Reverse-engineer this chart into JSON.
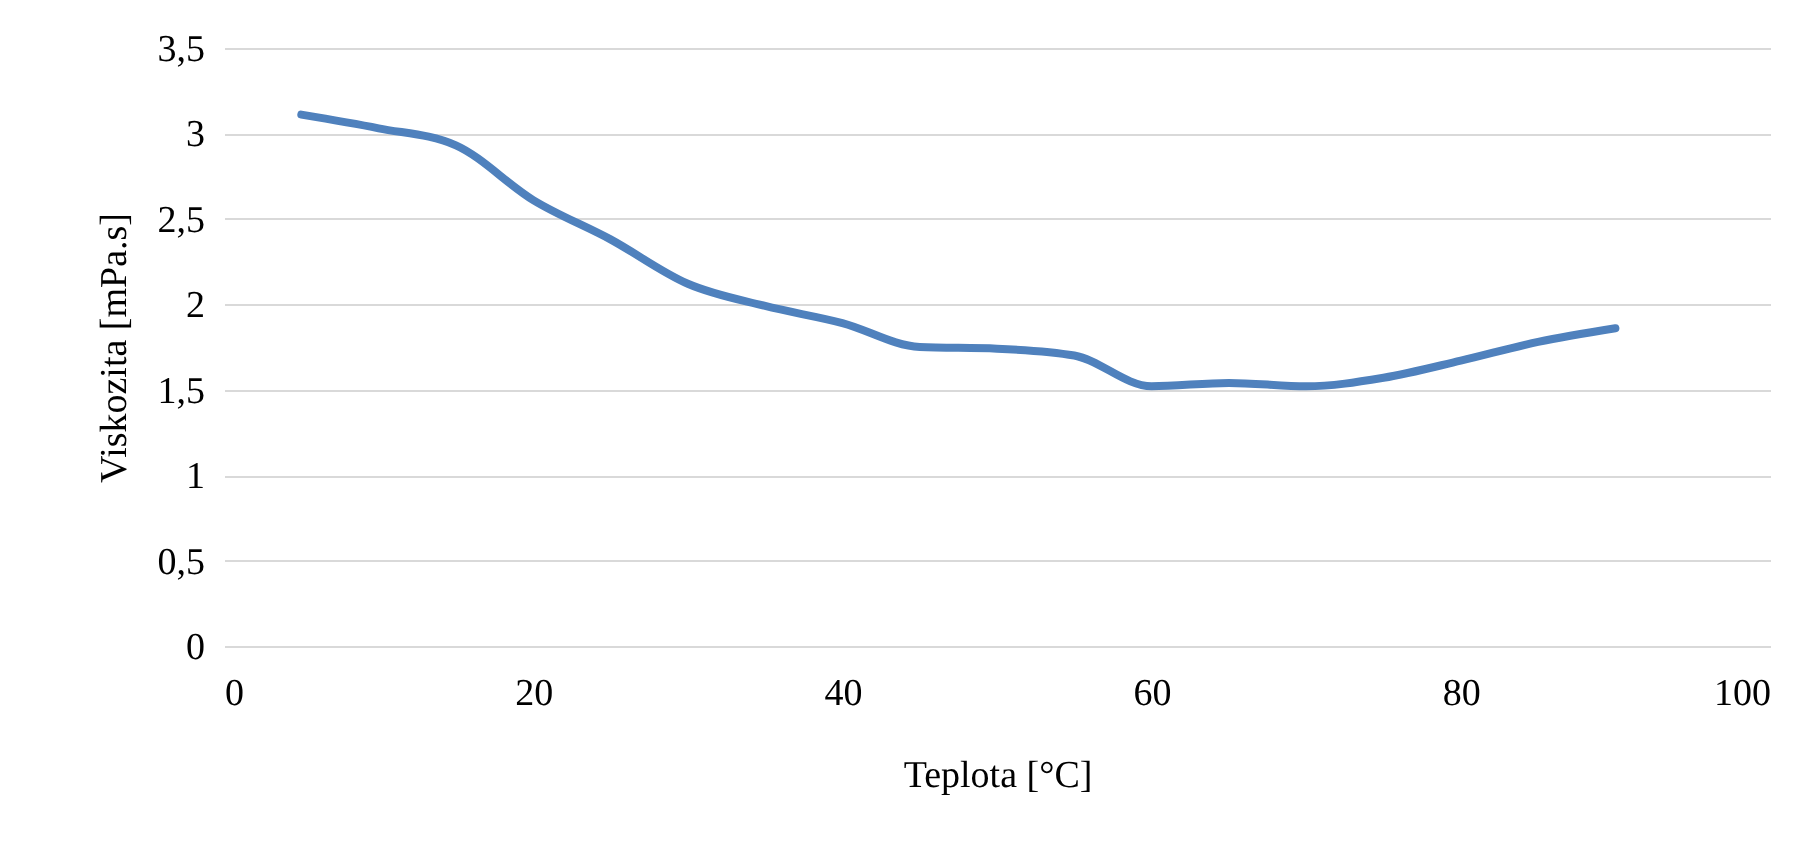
{
  "chart_data": {
    "type": "line",
    "xlabel": "Teplota [°C]",
    "ylabel": "Viskozita [mPa.s]",
    "x": [
      5,
      10,
      15,
      20,
      25,
      30,
      35,
      40,
      45,
      50,
      55,
      60,
      65,
      70,
      75,
      80,
      85,
      90
    ],
    "series": [
      {
        "color": "#4f81bd",
        "values": [
          3.11,
          3.03,
          2.93,
          2.61,
          2.38,
          2.12,
          1.99,
          1.89,
          1.75,
          1.74,
          1.7,
          1.52,
          1.54,
          1.52,
          1.57,
          1.67,
          1.78,
          1.86
        ]
      }
    ],
    "xlim": [
      0,
      100
    ],
    "xticks": [
      0,
      20,
      40,
      60,
      80,
      100
    ],
    "ylim": [
      0,
      3.5
    ],
    "yticks": [
      0,
      {
        "value": 0.5,
        "label": "0,5"
      },
      1,
      {
        "value": 1.5,
        "label": "1,5"
      },
      2,
      {
        "value": 2.5,
        "label": "2,5"
      },
      3,
      {
        "value": 3.5,
        "label": "3,5"
      }
    ],
    "grid": "y",
    "marker": "none",
    "line_style": "solid"
  }
}
